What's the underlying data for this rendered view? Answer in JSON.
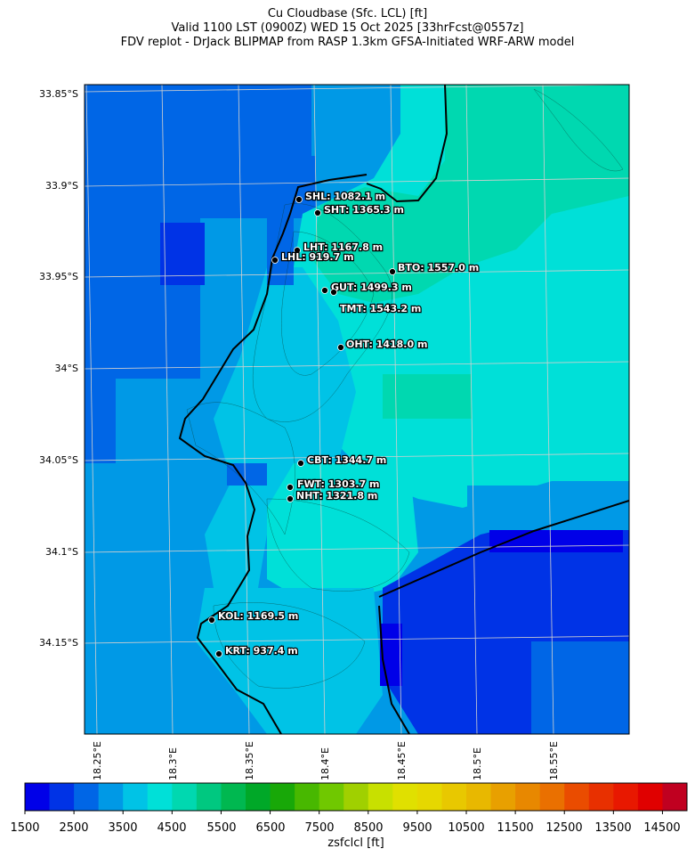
{
  "title": {
    "line1": "Cu Cloudbase (Sfc. LCL) [ft]",
    "line2": "Valid 1100 LST (0900Z) WED 15 Oct 2025 [33hrFcst@0557z]",
    "line3": "FDV replot - DrJack BLIPMAP from RASP 1.3km GFSA-Initiated WRF-ARW model"
  },
  "map": {
    "lat_ticks": [
      "33.85°S",
      "33.9°S",
      "33.95°S",
      "34°S",
      "34.05°S",
      "34.1°S",
      "34.15°S"
    ],
    "lon_ticks": [
      "18.25°E",
      "18.3°E",
      "18.35°E",
      "18.4°E",
      "18.45°E",
      "18.5°E",
      "18.55°E"
    ],
    "stations": [
      {
        "label": "SHL: 1082.1 m"
      },
      {
        "label": "SHT: 1365.3 m"
      },
      {
        "label": "LHT: 1167.8 m"
      },
      {
        "label": "LHL: 919.7 m"
      },
      {
        "label": "BTO: 1557.0 m"
      },
      {
        "label": "GUT: 1499.3 m"
      },
      {
        "label": "TMT: 1543.2 m"
      },
      {
        "label": "OHT: 1418.0 m"
      },
      {
        "label": "CBT: 1344.7 m"
      },
      {
        "label": "FWT: 1303.7 m"
      },
      {
        "label": "NHT: 1321.8 m"
      },
      {
        "label": "KOL: 1169.5 m"
      },
      {
        "label": "KRT: 937.4 m"
      }
    ]
  },
  "colorbar": {
    "label": "zsfclcl [ft]",
    "min": 1500,
    "max": 15000,
    "step": 500,
    "tick_labels": [
      "1500",
      "2500",
      "3500",
      "4500",
      "5500",
      "6500",
      "7500",
      "8500",
      "9500",
      "10500",
      "11500",
      "12500",
      "13500",
      "14500"
    ],
    "colors": [
      "#0000e8",
      "#0033e6",
      "#0066e6",
      "#0099e6",
      "#00c3e6",
      "#00e0d8",
      "#00d8b0",
      "#00c880",
      "#00b850",
      "#00a828",
      "#18a808",
      "#48b800",
      "#70c800",
      "#a0d000",
      "#c8e000",
      "#e0e000",
      "#e6d800",
      "#e8c800",
      "#e8b800",
      "#e8a000",
      "#e88800",
      "#ea7000",
      "#ea4c00",
      "#e83000",
      "#e81800",
      "#e00000",
      "#c00020"
    ]
  }
}
